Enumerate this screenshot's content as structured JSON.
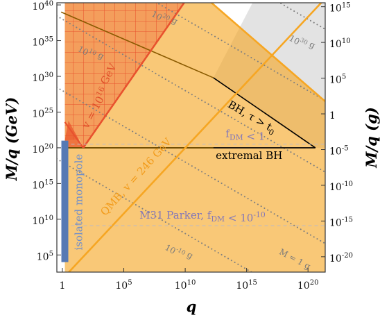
{
  "chart_data": {
    "type": "area",
    "xlabel": "q",
    "ylabel_left": "M/q (GeV)",
    "ylabel_right": "M/q (g)",
    "x_scale": "log10",
    "y_scale": "log10",
    "xlim_log10": [
      -0.45,
      21.4
    ],
    "ylim_log10": [
      2.6,
      40.3
    ],
    "x_ticks": [
      {
        "log10": 0,
        "label": "1"
      },
      {
        "log10": 5,
        "label": "10^5"
      },
      {
        "log10": 10,
        "label": "10^10"
      },
      {
        "log10": 15,
        "label": "10^15"
      },
      {
        "log10": 20,
        "label": "10^20"
      }
    ],
    "y_ticks_left": [
      {
        "log10": 5,
        "label": "10^5"
      },
      {
        "log10": 10,
        "label": "10^10"
      },
      {
        "log10": 15,
        "label": "10^15"
      },
      {
        "log10": 20,
        "label": "10^20"
      },
      {
        "log10": 25,
        "label": "10^25"
      },
      {
        "log10": 30,
        "label": "10^30"
      },
      {
        "log10": 35,
        "label": "10^35"
      },
      {
        "log10": 40,
        "label": "10^40"
      }
    ],
    "y_ticks_right": [
      {
        "log10_gev": 39.75,
        "label": "10^15"
      },
      {
        "log10_gev": 34.75,
        "label": "10^10"
      },
      {
        "log10_gev": 29.75,
        "label": "10^5"
      },
      {
        "log10_gev": 24.75,
        "label": "1"
      },
      {
        "log10_gev": 19.75,
        "label": "10^-5"
      },
      {
        "log10_gev": 14.75,
        "label": "10^-10"
      },
      {
        "log10_gev": 9.75,
        "label": "10^-15"
      },
      {
        "log10_gev": 4.75,
        "label": "10^-20"
      }
    ],
    "constant_mass_lines": [
      {
        "label": "10^30 g",
        "label_pos": [
          18.4,
          35.1
        ]
      },
      {
        "label": "10^20 g",
        "label_pos": [
          7.2,
          38.5
        ]
      },
      {
        "label": "10^10 g",
        "label_pos": [
          1.2,
          33.6
        ]
      },
      {
        "label": "M = 1 g",
        "label_pos": [
          17.6,
          5.2
        ]
      },
      {
        "label": "10^-10 g",
        "label_pos": [
          8.3,
          5.8
        ]
      }
    ],
    "regions": [
      {
        "name": "BH, τ > t_0",
        "label": "BH, τ > t_0",
        "color": "#e3e3e3"
      },
      {
        "name": "QMB, v = 246 GeV",
        "label": "QMB, v = 246 GeV",
        "color": "#f6a623"
      },
      {
        "name": "v = 10^16 GeV",
        "label": "v = 10^16 GeV",
        "color": "#e8522e"
      }
    ],
    "boundary_lines": [
      {
        "label": "extremal BH",
        "y_log10": 20.0
      }
    ],
    "isolated_monopole": {
      "label": "isolated monopole",
      "x_log10": 0.2,
      "y_log10_range": [
        4.0,
        21.0
      ],
      "color": "#5679b4"
    },
    "annotations": [
      {
        "text": "f_DM < 1",
        "y_log10": 20.9
      },
      {
        "text": "M31 Parker, f_DM < 10^-10",
        "y_log10": 9.5
      }
    ]
  }
}
